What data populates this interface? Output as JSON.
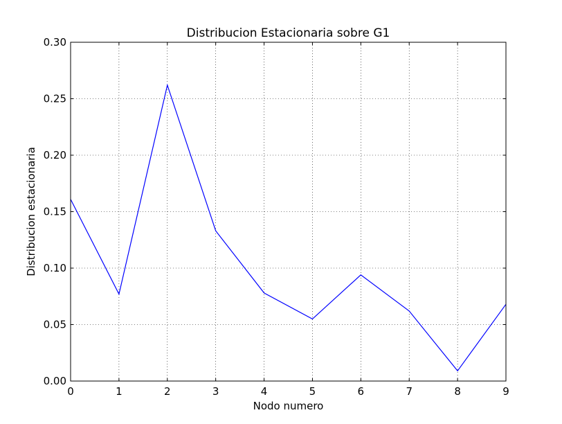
{
  "chart_data": {
    "type": "line",
    "title": "Distribucion Estacionaria sobre G1",
    "xlabel": "Nodo numero",
    "ylabel": "Distribucion estacionaria",
    "xlim": [
      0,
      9
    ],
    "ylim": [
      0.0,
      0.3
    ],
    "x_ticks": [
      "0",
      "1",
      "2",
      "3",
      "4",
      "5",
      "6",
      "7",
      "8",
      "9"
    ],
    "y_ticks": [
      "0.00",
      "0.05",
      "0.10",
      "0.15",
      "0.20",
      "0.25",
      "0.30"
    ],
    "grid": true,
    "series": [
      {
        "color": "#0000ff",
        "x": [
          0,
          1,
          2,
          3,
          4,
          5,
          6,
          7,
          8,
          9
        ],
        "values": [
          0.161,
          0.077,
          0.262,
          0.133,
          0.078,
          0.055,
          0.094,
          0.062,
          0.009,
          0.068
        ]
      }
    ]
  }
}
